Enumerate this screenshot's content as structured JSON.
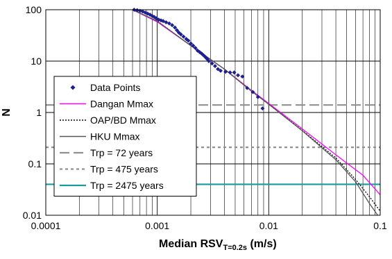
{
  "chart_data": {
    "type": "scatter",
    "xscale": "log",
    "yscale": "log",
    "xlim": [
      0.0001,
      0.1
    ],
    "ylim": [
      0.01,
      100
    ],
    "grid": true,
    "legend_position": "bottom-left",
    "xlabel": "Median RSV",
    "xlabel_subscript": "T=0.2s",
    "xlabel_unit": " (m/s)",
    "ylabel": "N",
    "xticks": [
      {
        "value": 0.0001,
        "label": "0.0001"
      },
      {
        "value": 0.001,
        "label": "0.001"
      },
      {
        "value": 0.01,
        "label": "0.01"
      },
      {
        "value": 0.1,
        "label": "0.1"
      }
    ],
    "yticks": [
      {
        "value": 100,
        "label": "100"
      },
      {
        "value": 10,
        "label": "10"
      },
      {
        "value": 1,
        "label": "1"
      },
      {
        "value": 0.1,
        "label": "0.1"
      },
      {
        "value": 0.01,
        "label": "0.01"
      }
    ],
    "series": [
      {
        "name": "Data Points",
        "kind": "marker",
        "color": "#1f1f8f",
        "points": [
          [
            0.00062,
            100
          ],
          [
            0.00066,
            98
          ],
          [
            0.0007,
            95
          ],
          [
            0.00074,
            92
          ],
          [
            0.00078,
            88
          ],
          [
            0.00082,
            84
          ],
          [
            0.00086,
            80
          ],
          [
            0.0009,
            76
          ],
          [
            0.00094,
            72
          ],
          [
            0.00098,
            68
          ],
          [
            0.00103,
            64
          ],
          [
            0.00108,
            62
          ],
          [
            0.00113,
            60
          ],
          [
            0.0012,
            57
          ],
          [
            0.00128,
            54
          ],
          [
            0.00136,
            50
          ],
          [
            0.00144,
            45
          ],
          [
            0.0015,
            40
          ],
          [
            0.00156,
            36
          ],
          [
            0.00163,
            33
          ],
          [
            0.00172,
            30
          ],
          [
            0.00182,
            27
          ],
          [
            0.0019,
            25
          ],
          [
            0.002,
            22
          ],
          [
            0.0021,
            20
          ],
          [
            0.0022,
            18
          ],
          [
            0.0023,
            16
          ],
          [
            0.0024,
            15
          ],
          [
            0.0025,
            14
          ],
          [
            0.0026,
            13
          ],
          [
            0.0027,
            12
          ],
          [
            0.0028,
            11
          ],
          [
            0.0029,
            10
          ],
          [
            0.0031,
            9
          ],
          [
            0.0033,
            8
          ],
          [
            0.0035,
            7
          ],
          [
            0.0037,
            6.5
          ],
          [
            0.0041,
            6.2
          ],
          [
            0.0045,
            6
          ],
          [
            0.0049,
            6
          ],
          [
            0.0053,
            5.3
          ],
          [
            0.0058,
            5
          ],
          [
            0.0064,
            3
          ],
          [
            0.0072,
            2.5
          ],
          [
            0.008,
            2
          ],
          [
            0.0088,
            1.2
          ]
        ]
      },
      {
        "name": "Dangan Mmax",
        "kind": "line",
        "color": "#ff00ff",
        "dash": "",
        "points": [
          [
            0.0006,
            105
          ],
          [
            0.001,
            58
          ],
          [
            0.002,
            20
          ],
          [
            0.004,
            7
          ],
          [
            0.007,
            2.7
          ],
          [
            0.01,
            1.5
          ],
          [
            0.02,
            0.48
          ],
          [
            0.04,
            0.15
          ],
          [
            0.07,
            0.06
          ],
          [
            0.1,
            0.025
          ]
        ]
      },
      {
        "name": "OAP/BD Mmax",
        "kind": "line",
        "color": "#000000",
        "dash": "2,2",
        "points": [
          [
            0.0006,
            108
          ],
          [
            0.001,
            60
          ],
          [
            0.002,
            20
          ],
          [
            0.004,
            7
          ],
          [
            0.007,
            2.6
          ],
          [
            0.01,
            1.45
          ],
          [
            0.02,
            0.45
          ],
          [
            0.04,
            0.13
          ],
          [
            0.06,
            0.05
          ],
          [
            0.08,
            0.023
          ],
          [
            0.1,
            0.012
          ]
        ]
      },
      {
        "name": "HKU Mmax",
        "kind": "line",
        "color": "#555555",
        "dash": "",
        "points": [
          [
            0.0006,
            112
          ],
          [
            0.001,
            60
          ],
          [
            0.002,
            20
          ],
          [
            0.004,
            7
          ],
          [
            0.007,
            2.6
          ],
          [
            0.01,
            1.45
          ],
          [
            0.02,
            0.44
          ],
          [
            0.04,
            0.12
          ],
          [
            0.06,
            0.045
          ],
          [
            0.08,
            0.017
          ],
          [
            0.095,
            0.008
          ]
        ]
      },
      {
        "name": "Trp = 72 years",
        "kind": "hline",
        "color": "#909090",
        "dash": "14,6",
        "y": 1.4
      },
      {
        "name": "Trp = 475 years",
        "kind": "hline",
        "color": "#909090",
        "dash": "4,4",
        "y": 0.21
      },
      {
        "name": "Trp = 2475 years",
        "kind": "hline",
        "color": "#1a9a9a",
        "dash": "",
        "y": 0.04
      }
    ]
  }
}
